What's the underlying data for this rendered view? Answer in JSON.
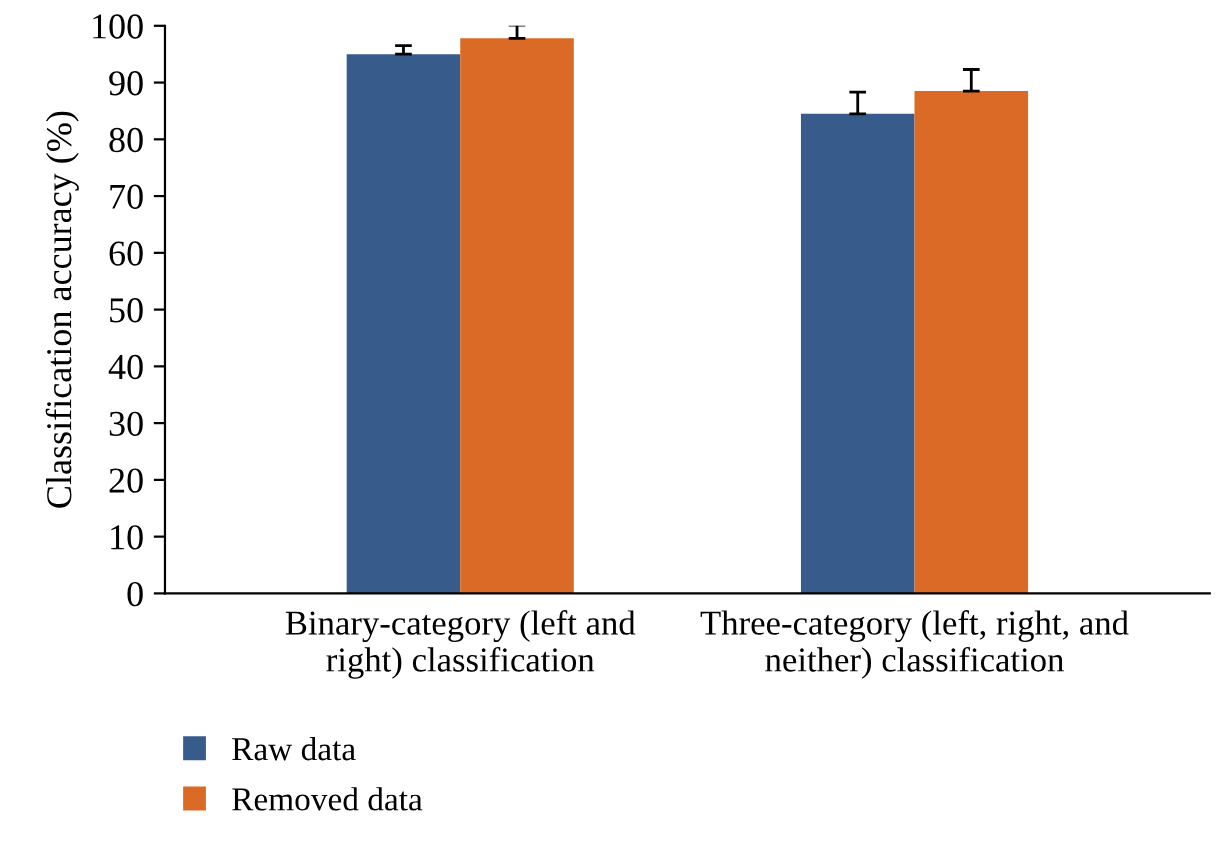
{
  "chart_data": {
    "type": "bar",
    "ylabel": "Classification accuracy (%)",
    "categories": [
      "Binary-category (left and right) classification",
      "Three-category (left, right, and neither) classification"
    ],
    "series": [
      {
        "name": "Raw data",
        "color": "#375b8b",
        "values": [
          95.0,
          84.5
        ],
        "errors": [
          [
            95.0,
            96.5
          ],
          [
            84.5,
            88.3
          ]
        ]
      },
      {
        "name": "Removed data",
        "color": "#db6a26",
        "values": [
          97.8,
          88.5
        ],
        "errors": [
          [
            97.8,
            100.1
          ],
          [
            88.5,
            92.3
          ]
        ]
      }
    ],
    "ylim": [
      0,
      100
    ],
    "yticks": [
      0,
      10,
      20,
      30,
      40,
      50,
      60,
      70,
      80,
      90,
      100
    ],
    "grid": false,
    "legend": "bottom left"
  }
}
